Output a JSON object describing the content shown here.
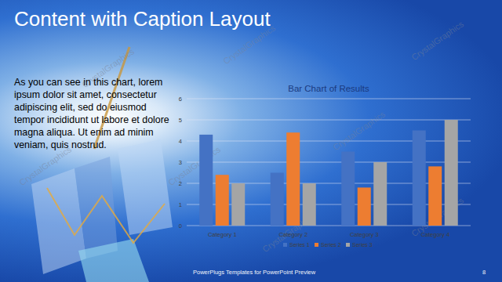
{
  "slide": {
    "title": "Content with Caption Layout",
    "caption": "As you can see in this chart, lorem ipsum dolor sit amet, consectetur adipiscing elit, sed do eiusmod tempor incididunt ut labore et dolore magna aliqua. Ut enim ad minim veniam, quis nostrud.",
    "footer": "PowerPlugs Templates for PowerPoint Preview",
    "page_number": "8",
    "watermark": "CrystalGraphics"
  },
  "chart_data": {
    "type": "bar",
    "title": "Bar Chart of Results",
    "categories": [
      "Category 1",
      "Category 2",
      "Category 3",
      "Category 4"
    ],
    "series": [
      {
        "name": "Series 1",
        "color": "#4472c4",
        "values": [
          4.3,
          2.5,
          3.5,
          4.5
        ]
      },
      {
        "name": "Series 2",
        "color": "#ed7d31",
        "values": [
          2.4,
          4.4,
          1.8,
          2.8
        ]
      },
      {
        "name": "Series 3",
        "color": "#a5a5a5",
        "values": [
          2,
          2,
          3,
          5
        ]
      }
    ],
    "ylim": [
      0,
      6
    ],
    "yticks": [
      0,
      1,
      2,
      3,
      4,
      5,
      6
    ],
    "grid": true,
    "legend": "bottom"
  }
}
